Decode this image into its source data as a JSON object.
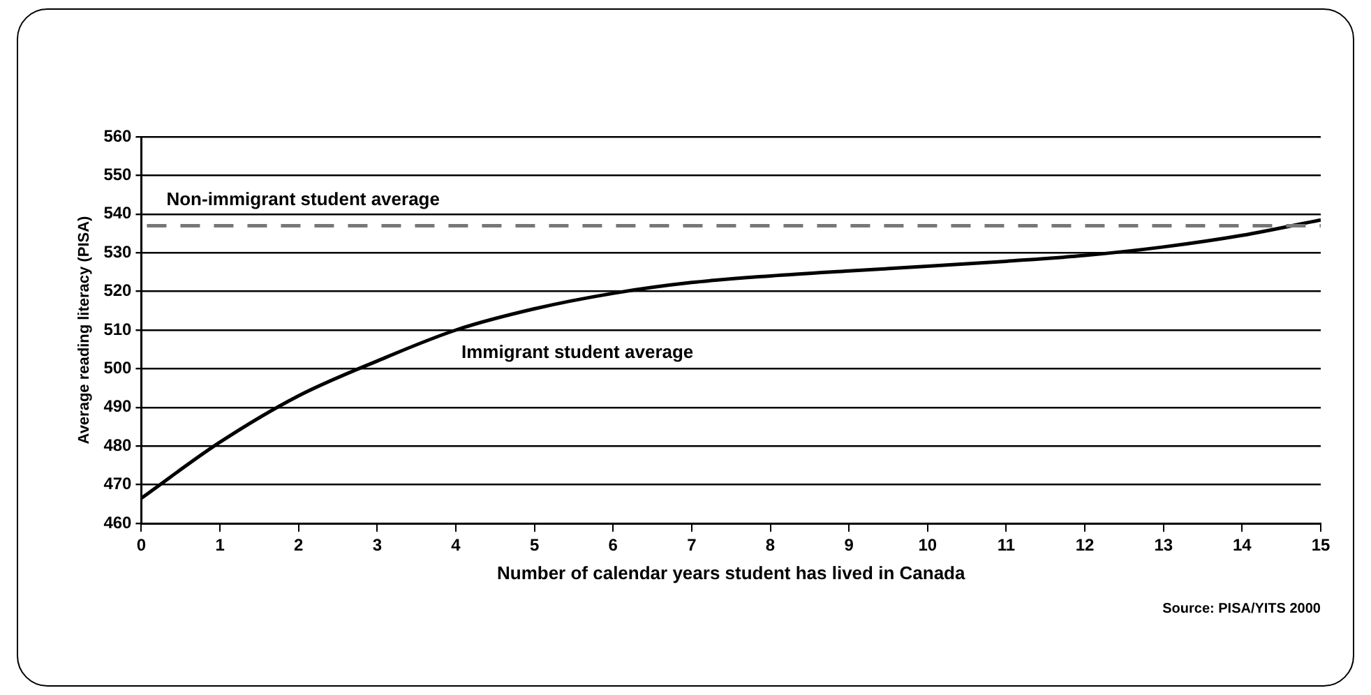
{
  "chart_data": {
    "type": "line",
    "xlabel": "Number of calendar years student has lived in Canada",
    "ylabel": "Average reading literacy (PISA)",
    "x": [
      0,
      1,
      2,
      3,
      4,
      5,
      6,
      7,
      8,
      9,
      10,
      11,
      12,
      13,
      14,
      15
    ],
    "series": [
      {
        "name": "Immigrant student average",
        "color": "#000000",
        "values": [
          466.5,
          481,
          493,
          502,
          510,
          515.5,
          519.5,
          522.3,
          524,
          525.3,
          526.5,
          527.8,
          529.3,
          531.5,
          534.5,
          538.5
        ]
      }
    ],
    "xlim": [
      0,
      15
    ],
    "xticks": [
      0,
      1,
      2,
      3,
      4,
      5,
      6,
      7,
      8,
      9,
      10,
      11,
      12,
      13,
      14,
      15
    ],
    "ylim": [
      460,
      560
    ],
    "yticks": [
      460,
      470,
      480,
      490,
      500,
      510,
      520,
      530,
      540,
      550,
      560
    ],
    "ref_lines": [
      {
        "axis": "y",
        "value": 537,
        "label": "Non-immigrant student average",
        "color": "#777777",
        "line_style": "dashed"
      }
    ],
    "annotations": [
      "Source: PISA/YITS 2000"
    ],
    "grid": "y",
    "legend": false,
    "marker": "none",
    "line_style": "solid"
  }
}
